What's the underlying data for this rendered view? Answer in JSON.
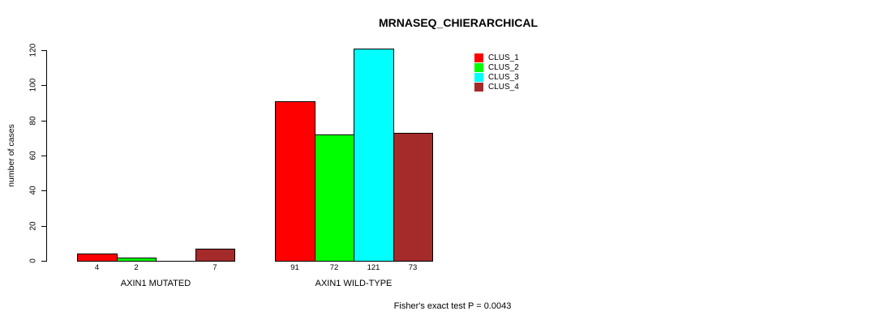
{
  "chart_data": {
    "type": "bar",
    "title": "MRNASEQ_CHIERARCHICAL",
    "ylabel": "number of cases",
    "xlabel": "",
    "ylim": [
      0,
      120
    ],
    "yticks": [
      0,
      20,
      40,
      60,
      80,
      100,
      120
    ],
    "grid": false,
    "legend_position": "top-right",
    "series": [
      {
        "name": "CLUS_1",
        "color": "#FF0000"
      },
      {
        "name": "CLUS_2",
        "color": "#00FF00"
      },
      {
        "name": "CLUS_3",
        "color": "#00FFFF"
      },
      {
        "name": "CLUS_4",
        "color": "#A52A2A"
      }
    ],
    "groups": [
      {
        "label": "AXIN1 MUTATED",
        "values": [
          4,
          2,
          0,
          7
        ],
        "bar_labels": [
          "4",
          "2",
          "",
          "7"
        ]
      },
      {
        "label": "AXIN1 WILD-TYPE",
        "values": [
          91,
          72,
          121,
          73
        ],
        "bar_labels": [
          "91",
          "72",
          "121",
          "73"
        ]
      }
    ],
    "annotation": "Fisher's exact test P = 0.0043"
  }
}
